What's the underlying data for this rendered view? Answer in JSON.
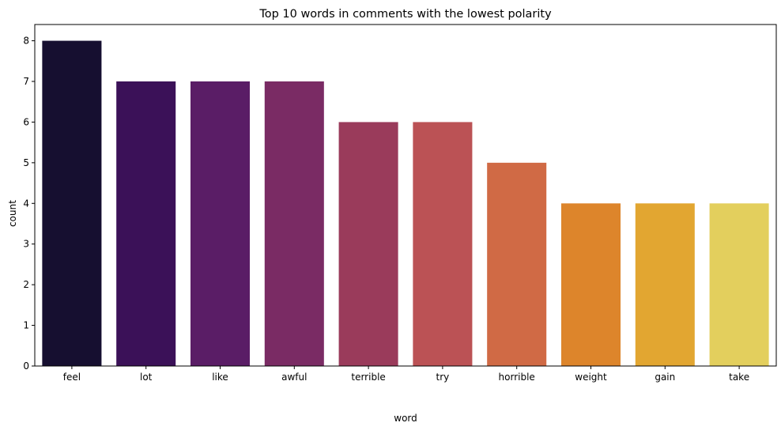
{
  "chart_data": {
    "type": "bar",
    "title": "Top 10 words in comments with the lowest polarity",
    "xlabel": "word",
    "ylabel": "count",
    "categories": [
      "feel",
      "lot",
      "like",
      "awful",
      "terrible",
      "try",
      "horrible",
      "weight",
      "gain",
      "take"
    ],
    "values": [
      8,
      7,
      7,
      7,
      6,
      6,
      5,
      4,
      4,
      4
    ],
    "colors": [
      "#160f30",
      "#3b1158",
      "#5a1d66",
      "#7a2b64",
      "#9a3b5b",
      "#bb5255",
      "#d06a45",
      "#dd852b",
      "#e2a631",
      "#e3cf5d"
    ],
    "ylim": [
      0,
      8.4
    ],
    "yticks": [
      "0",
      "1",
      "2",
      "3",
      "4",
      "5",
      "6",
      "7",
      "8"
    ],
    "grid": false,
    "legend": "none"
  }
}
